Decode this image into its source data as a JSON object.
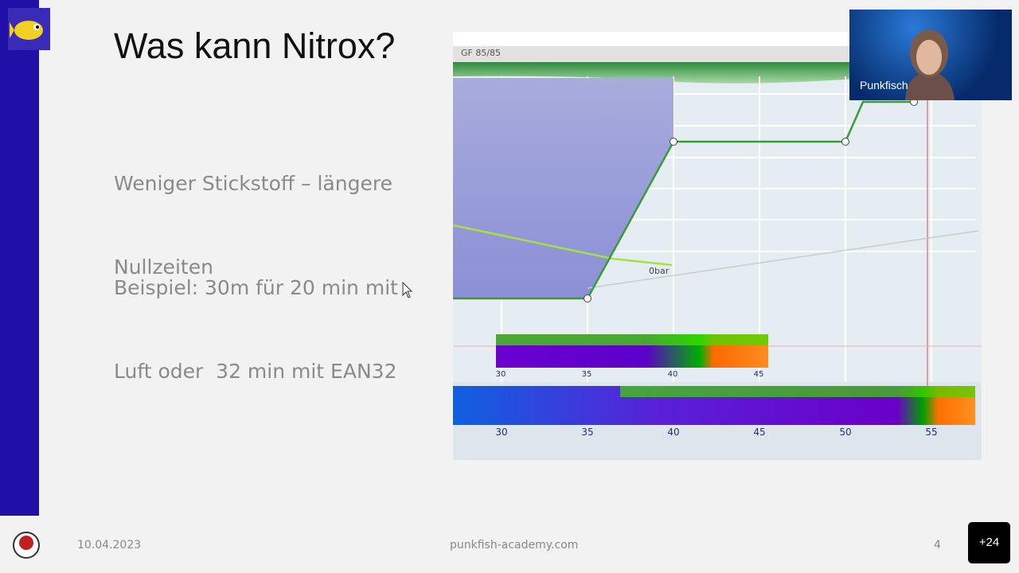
{
  "slide": {
    "title": "Was kann Nitrox?",
    "paragraphs": [
      [
        "Weniger Stickstoff – längere",
        "Nullzeiten"
      ],
      [
        "Beispiel: 30m für 20 min mit",
        "Luft oder  32 min mit EAN32"
      ]
    ],
    "footer": {
      "date": "10.04.2023",
      "website": "punkfish-academy.com",
      "page": "4"
    }
  },
  "dive_plan": {
    "gradient_factors": "GF 85/85",
    "gas_label": "0bar",
    "tissue_axis": [
      "30",
      "35",
      "40",
      "45"
    ],
    "time_axis": [
      "30",
      "35",
      "40",
      "45",
      "50",
      "55"
    ]
  },
  "call": {
    "speaker": "Punkfisch",
    "more_participants": "+24"
  }
}
